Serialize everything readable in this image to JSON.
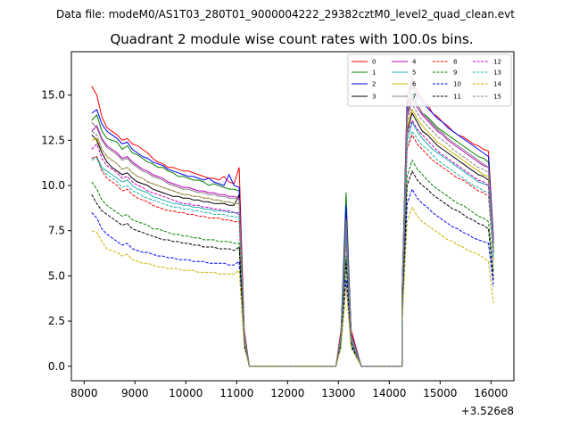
{
  "figure": {
    "suptitle": "Data file: modeM0/AS1T03_280T01_9000004222_29382cztM0_level2_quad_clean.evt",
    "title": "Quadrant 2 module wise count rates with 100.0s bins."
  },
  "chart_data": {
    "type": "line",
    "title": "Quadrant 2 module wise count rates with 100.0s bins.",
    "xlabel": "",
    "ylabel": "",
    "x_offset_label": "+3.526e8",
    "x_offset": 352600000,
    "xlim": [
      7750,
      16450
    ],
    "ylim": [
      -0.8,
      17.4
    ],
    "x_ticks": [
      8000,
      9000,
      10000,
      11000,
      12000,
      13000,
      14000,
      15000,
      16000
    ],
    "y_ticks": [
      0.0,
      2.5,
      5.0,
      7.5,
      10.0,
      12.5,
      15.0
    ],
    "y_tick_labels": [
      "0.0",
      "2.5",
      "5.0",
      "7.5",
      "10.0",
      "12.5",
      "15.0"
    ],
    "grid": false,
    "legend": {
      "location": "upper-right",
      "columns": 4
    },
    "segments": [
      {
        "x_start": 8150,
        "x_end": 11150,
        "step": 100
      },
      {
        "x_start": 11150,
        "x_end": 12950,
        "step": 100
      },
      {
        "x_start": 12950,
        "x_end": 13250,
        "step": 100
      },
      {
        "x_start": 13250,
        "x_end": 14250,
        "step": 100
      },
      {
        "x_start": 14250,
        "x_end": 16050,
        "step": 100
      }
    ],
    "series": [
      {
        "name": "0",
        "color": "#ff0000",
        "dash": "solid",
        "seg1": [
          15.5,
          15.0,
          13.8,
          13.2,
          13.0,
          12.8,
          12.5,
          12.6,
          12.3,
          12.2,
          12.0,
          11.8,
          11.5,
          11.3,
          11.2,
          11.0,
          11.0,
          10.9,
          10.8,
          10.8,
          10.7,
          10.6,
          10.5,
          10.4,
          10.4,
          10.3,
          10.5,
          10.2,
          10.1,
          11.0,
          2.0
        ],
        "peak": [
          2.0,
          8.4,
          2.0
        ],
        "seg2": [
          4.0,
          15.0,
          15.8,
          15.2,
          14.8,
          14.5,
          14.0,
          13.8,
          13.5,
          13.3,
          13.0,
          12.8,
          12.7,
          12.5,
          12.3,
          12.2,
          12.0,
          11.9,
          7.0
        ]
      },
      {
        "name": "1",
        "color": "#008000",
        "dash": "solid",
        "seg1": [
          13.6,
          13.9,
          13.0,
          12.6,
          12.5,
          12.4,
          12.0,
          12.2,
          11.8,
          11.7,
          11.5,
          11.3,
          11.2,
          11.0,
          11.0,
          10.8,
          10.7,
          10.5,
          10.5,
          10.4,
          10.3,
          10.3,
          10.2,
          10.0,
          10.1,
          10.0,
          9.9,
          9.8,
          9.8,
          9.7,
          1.8
        ],
        "peak": [
          1.8,
          9.6,
          1.8
        ],
        "seg2": [
          4.0,
          14.0,
          15.0,
          14.5,
          14.0,
          13.8,
          13.5,
          13.2,
          13.0,
          12.8,
          12.6,
          12.4,
          12.2,
          12.0,
          11.8,
          11.6,
          11.5,
          11.3,
          6.8
        ]
      },
      {
        "name": "2",
        "color": "#0000ff",
        "dash": "solid",
        "seg1": [
          14.0,
          14.2,
          13.4,
          13.0,
          12.8,
          12.6,
          12.3,
          12.4,
          12.0,
          11.8,
          11.6,
          11.5,
          11.3,
          11.2,
          11.1,
          10.9,
          10.8,
          10.7,
          10.6,
          10.5,
          10.5,
          10.4,
          10.3,
          10.4,
          10.2,
          10.1,
          10.0,
          10.6,
          10.0,
          9.9,
          1.8
        ],
        "peak": [
          1.8,
          8.9,
          1.8
        ],
        "seg2": [
          4.0,
          14.5,
          15.5,
          15.0,
          14.6,
          14.3,
          14.0,
          13.7,
          13.5,
          13.2,
          13.0,
          12.8,
          12.6,
          12.4,
          12.2,
          12.0,
          11.8,
          11.6,
          7.0
        ]
      },
      {
        "name": "3",
        "color": "#000000",
        "dash": "solid",
        "seg1": [
          12.8,
          12.5,
          11.8,
          11.3,
          11.0,
          10.8,
          10.6,
          10.7,
          10.4,
          10.2,
          10.1,
          10.0,
          9.8,
          9.7,
          9.6,
          9.5,
          9.4,
          9.4,
          9.3,
          9.3,
          9.2,
          9.2,
          9.1,
          9.1,
          9.0,
          9.0,
          9.0,
          8.9,
          8.9,
          9.5,
          1.6
        ],
        "peak": [
          1.6,
          8.0,
          1.6
        ],
        "seg2": [
          3.6,
          13.0,
          14.0,
          13.5,
          13.0,
          12.8,
          12.5,
          12.2,
          12.0,
          11.8,
          11.6,
          11.4,
          11.2,
          11.0,
          10.8,
          10.6,
          10.5,
          10.3,
          6.5
        ]
      },
      {
        "name": "4",
        "color": "#c000c0",
        "dash": "solid",
        "seg1": [
          13.0,
          13.3,
          12.6,
          12.2,
          12.0,
          11.8,
          11.5,
          11.6,
          11.3,
          11.1,
          10.9,
          10.8,
          10.6,
          10.5,
          10.4,
          10.2,
          10.1,
          10.0,
          9.9,
          9.9,
          9.8,
          9.7,
          9.7,
          9.6,
          9.6,
          9.5,
          9.5,
          9.4,
          9.4,
          9.3,
          1.7
        ],
        "peak": [
          1.7,
          8.2,
          1.7
        ],
        "seg2": [
          3.8,
          13.8,
          14.8,
          14.3,
          13.9,
          13.6,
          13.3,
          13.0,
          12.8,
          12.5,
          12.3,
          12.1,
          11.9,
          11.7,
          11.5,
          11.3,
          11.1,
          11.0,
          6.8
        ]
      },
      {
        "name": "5",
        "color": "#20b2aa",
        "dash": "solid",
        "seg1": [
          11.5,
          11.6,
          11.0,
          10.8,
          10.6,
          10.4,
          10.2,
          10.3,
          10.0,
          9.8,
          9.7,
          9.6,
          9.4,
          9.3,
          9.2,
          9.1,
          9.0,
          9.0,
          8.9,
          8.9,
          8.8,
          8.8,
          8.7,
          8.7,
          8.6,
          8.6,
          8.6,
          8.5,
          8.5,
          8.4,
          1.5
        ],
        "peak": [
          1.5,
          7.6,
          1.5
        ],
        "seg2": [
          3.4,
          12.5,
          13.5,
          13.0,
          12.6,
          12.3,
          12.0,
          11.8,
          11.6,
          11.4,
          11.2,
          11.0,
          10.8,
          10.6,
          10.4,
          10.2,
          10.1,
          10.0,
          6.2
        ]
      },
      {
        "name": "6",
        "color": "#c8b400",
        "dash": "solid",
        "seg1": [
          12.5,
          12.6,
          12.0,
          11.6,
          11.4,
          11.2,
          10.9,
          11.0,
          10.7,
          10.5,
          10.4,
          10.2,
          10.1,
          10.0,
          9.9,
          9.8,
          9.7,
          9.6,
          9.5,
          9.5,
          9.4,
          9.4,
          9.3,
          9.3,
          9.2,
          9.2,
          9.1,
          9.1,
          9.0,
          9.0,
          1.6
        ],
        "peak": [
          1.6,
          7.8,
          1.6
        ],
        "seg2": [
          3.6,
          13.2,
          14.2,
          13.7,
          13.3,
          13.0,
          12.7,
          12.4,
          12.2,
          12.0,
          11.8,
          11.6,
          11.4,
          11.2,
          11.0,
          10.8,
          10.6,
          10.5,
          6.5
        ]
      },
      {
        "name": "7",
        "color": "#808080",
        "dash": "solid",
        "seg1": [
          13.5,
          13.2,
          12.5,
          12.1,
          11.9,
          11.7,
          11.4,
          11.5,
          11.2,
          11.0,
          10.8,
          10.7,
          10.5,
          10.4,
          10.3,
          10.1,
          10.0,
          9.9,
          9.8,
          9.8,
          9.7,
          9.6,
          9.6,
          9.5,
          9.5,
          9.4,
          9.4,
          9.3,
          9.3,
          9.2,
          1.7
        ],
        "peak": [
          1.7,
          8.1,
          1.7
        ],
        "seg2": [
          3.8,
          14.0,
          16.0,
          14.5,
          14.0,
          13.7,
          13.4,
          13.1,
          12.9,
          12.6,
          12.4,
          12.2,
          12.0,
          11.8,
          11.6,
          11.4,
          11.2,
          11.0,
          6.8
        ]
      },
      {
        "name": "8",
        "color": "#ff0000",
        "dash": "dashed",
        "seg1": [
          11.5,
          11.6,
          10.8,
          10.4,
          10.2,
          10.0,
          9.7,
          9.8,
          9.5,
          9.3,
          9.2,
          9.1,
          8.9,
          8.8,
          8.7,
          8.6,
          8.6,
          8.5,
          8.5,
          8.4,
          8.4,
          8.3,
          8.3,
          8.2,
          8.2,
          8.2,
          8.1,
          8.1,
          8.0,
          8.0,
          1.4
        ],
        "peak": [
          1.4,
          7.0,
          1.4
        ],
        "seg2": [
          3.2,
          12.0,
          12.8,
          12.3,
          12.0,
          11.7,
          11.4,
          11.2,
          11.0,
          10.8,
          10.6,
          10.4,
          10.3,
          10.1,
          9.9,
          9.7,
          9.6,
          9.4,
          5.9
        ]
      },
      {
        "name": "9",
        "color": "#008000",
        "dash": "dashed",
        "seg1": [
          10.2,
          9.8,
          9.2,
          8.9,
          8.7,
          8.5,
          8.3,
          8.4,
          8.1,
          8.0,
          7.9,
          7.8,
          7.6,
          7.6,
          7.5,
          7.4,
          7.3,
          7.3,
          7.2,
          7.2,
          7.1,
          7.1,
          7.0,
          7.0,
          7.0,
          6.9,
          6.9,
          6.9,
          6.8,
          6.8,
          1.3
        ],
        "peak": [
          1.3,
          6.1,
          1.3
        ],
        "seg2": [
          2.8,
          10.5,
          11.4,
          10.9,
          10.6,
          10.3,
          10.0,
          9.8,
          9.6,
          9.4,
          9.2,
          9.0,
          8.9,
          8.7,
          8.5,
          8.3,
          8.2,
          8.0,
          5.2
        ]
      },
      {
        "name": "10",
        "color": "#0000ff",
        "dash": "dashed",
        "seg1": [
          8.5,
          8.2,
          7.6,
          7.3,
          7.1,
          6.9,
          6.7,
          6.8,
          6.5,
          6.4,
          6.3,
          6.3,
          6.2,
          6.1,
          6.1,
          6.0,
          6.0,
          5.9,
          5.9,
          5.9,
          5.8,
          5.8,
          5.8,
          5.7,
          5.7,
          5.7,
          5.7,
          5.6,
          5.6,
          5.8,
          1.1
        ],
        "peak": [
          1.1,
          4.8,
          1.1
        ],
        "seg2": [
          2.4,
          9.0,
          9.8,
          9.3,
          9.0,
          8.8,
          8.5,
          8.3,
          8.1,
          7.9,
          7.7,
          7.6,
          7.4,
          7.3,
          7.1,
          7.0,
          6.9,
          6.8,
          4.4
        ]
      },
      {
        "name": "11",
        "color": "#000000",
        "dash": "dashed",
        "seg1": [
          9.5,
          9.0,
          8.6,
          8.4,
          8.2,
          8.0,
          7.8,
          7.9,
          7.6,
          7.5,
          7.4,
          7.3,
          7.2,
          7.1,
          7.0,
          7.0,
          6.9,
          6.9,
          6.8,
          6.8,
          6.7,
          6.7,
          6.6,
          6.6,
          6.6,
          6.5,
          6.5,
          6.5,
          6.4,
          6.6,
          1.2
        ],
        "peak": [
          1.2,
          5.8,
          1.2
        ],
        "seg2": [
          2.7,
          10.0,
          10.8,
          10.3,
          10.0,
          9.8,
          9.5,
          9.3,
          9.1,
          8.9,
          8.7,
          8.6,
          8.4,
          8.2,
          8.1,
          7.9,
          7.8,
          7.6,
          4.8
        ]
      },
      {
        "name": "12",
        "color": "#c000c0",
        "dash": "dashed",
        "seg1": [
          12.0,
          12.3,
          11.5,
          11.1,
          10.9,
          10.7,
          10.4,
          10.5,
          10.2,
          10.0,
          9.9,
          9.7,
          9.6,
          9.5,
          9.4,
          9.3,
          9.2,
          9.1,
          9.0,
          9.0,
          8.9,
          8.9,
          8.8,
          8.8,
          8.7,
          8.7,
          8.6,
          8.6,
          8.5,
          8.5,
          1.5
        ],
        "peak": [
          1.5,
          7.4,
          1.5
        ],
        "seg2": [
          3.4,
          12.8,
          13.6,
          13.1,
          12.8,
          12.5,
          12.2,
          11.9,
          11.7,
          11.5,
          11.3,
          11.1,
          10.9,
          10.7,
          10.5,
          10.3,
          10.2,
          10.0,
          6.3
        ]
      },
      {
        "name": "13",
        "color": "#20b2aa",
        "dash": "dashed",
        "seg1": [
          11.4,
          11.5,
          10.9,
          10.6,
          10.4,
          10.2,
          9.9,
          10.0,
          9.7,
          9.6,
          9.4,
          9.3,
          9.2,
          9.1,
          9.0,
          8.9,
          8.8,
          8.8,
          8.7,
          8.7,
          8.6,
          8.6,
          8.5,
          8.5,
          8.4,
          8.4,
          8.4,
          8.3,
          8.3,
          8.2,
          1.4
        ],
        "peak": [
          1.4,
          7.2,
          1.4
        ],
        "seg2": [
          3.3,
          12.2,
          13.0,
          12.6,
          12.2,
          12.0,
          11.7,
          11.4,
          11.2,
          11.0,
          10.8,
          10.6,
          10.4,
          10.2,
          10.0,
          9.9,
          9.7,
          9.6,
          6.0
        ]
      },
      {
        "name": "14",
        "color": "#c8b400",
        "dash": "dashed",
        "seg1": [
          7.5,
          7.4,
          6.9,
          6.5,
          6.4,
          6.3,
          6.1,
          6.2,
          5.9,
          5.8,
          5.7,
          5.7,
          5.6,
          5.5,
          5.5,
          5.4,
          5.4,
          5.4,
          5.3,
          5.3,
          5.3,
          5.2,
          5.2,
          5.2,
          5.2,
          5.1,
          5.1,
          5.1,
          5.1,
          5.3,
          1.0
        ],
        "peak": [
          1.0,
          4.4,
          1.0
        ],
        "seg2": [
          2.2,
          8.0,
          8.8,
          8.3,
          8.0,
          7.8,
          7.6,
          7.4,
          7.2,
          7.0,
          6.9,
          6.7,
          6.6,
          6.4,
          6.3,
          6.2,
          6.0,
          5.8,
          3.5
        ]
      },
      {
        "name": "15",
        "color": "#808080",
        "dash": "dashed",
        "seg1": [
          13.0,
          12.8,
          12.0,
          11.6,
          11.4,
          11.2,
          10.9,
          11.0,
          10.7,
          10.5,
          10.4,
          10.2,
          10.1,
          10.0,
          9.9,
          9.8,
          9.7,
          9.6,
          9.5,
          9.5,
          9.4,
          9.4,
          9.3,
          9.3,
          9.2,
          9.2,
          9.1,
          9.1,
          9.0,
          9.0,
          1.6
        ],
        "peak": [
          1.6,
          7.7,
          1.6
        ],
        "seg2": [
          3.6,
          13.5,
          14.5,
          14.0,
          13.6,
          13.3,
          13.0,
          12.7,
          12.5,
          12.3,
          12.0,
          11.8,
          11.6,
          11.4,
          11.2,
          11.0,
          10.9,
          10.7,
          6.6
        ]
      }
    ]
  }
}
